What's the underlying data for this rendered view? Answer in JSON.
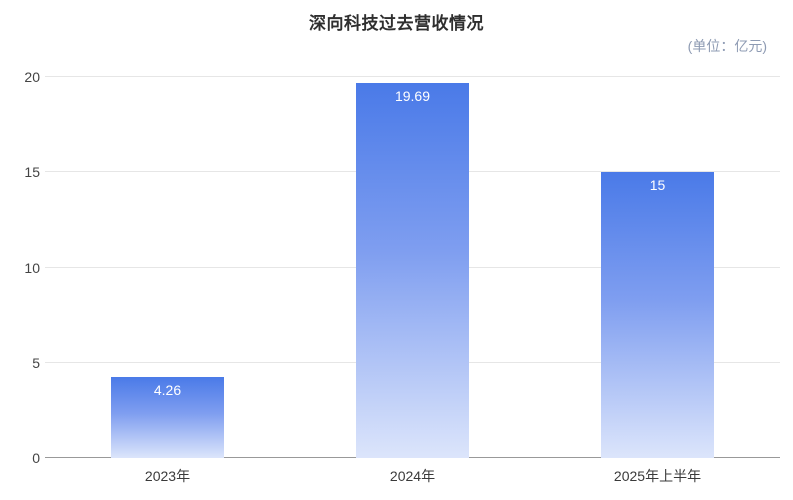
{
  "chart_data": {
    "type": "bar",
    "title": "深向科技过去营收情况",
    "unit": "(单位：亿元)",
    "categories": [
      "2023年",
      "2024年",
      "2025年上半年"
    ],
    "values": [
      4.26,
      19.69,
      15
    ],
    "data_labels": [
      "4.26",
      "19.69",
      "15"
    ],
    "y_ticks": [
      0,
      5,
      10,
      15,
      20
    ],
    "ylim": [
      0,
      20
    ],
    "grid": true,
    "legend": "none",
    "colors": {
      "bar_top": "#4a7ae8",
      "bar_mid": "#7f9ef0",
      "bar_bottom": "#dce5fb",
      "label_text": "#ffffff",
      "grid_line": "#e6e6e6",
      "axis_line": "#999999",
      "title_text": "#2f2f2f",
      "unit_text": "#8e9bb3",
      "tick_text": "#444444"
    }
  }
}
